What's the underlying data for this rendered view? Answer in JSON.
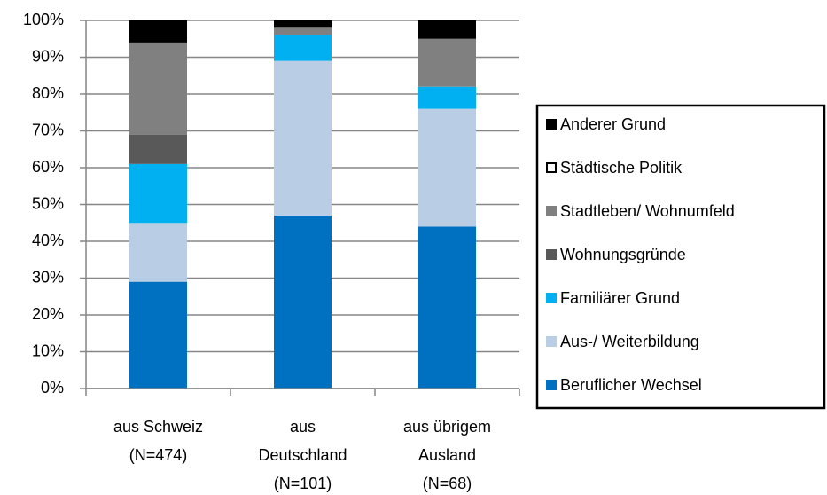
{
  "chart_data": {
    "type": "bar",
    "stacked": true,
    "categories": [
      "aus Schweiz\n(N=474)",
      "aus\nDeutschland\n(N=101)",
      "aus übrigem\nAusland\n(N=68)"
    ],
    "series": [
      {
        "name": "Beruflicher Wechsel",
        "color": "#0070c0",
        "values": [
          29,
          47,
          44
        ]
      },
      {
        "name": "Aus-/ Weiterbildung",
        "color": "#b9cde5",
        "values": [
          16,
          42,
          32
        ]
      },
      {
        "name": "Familiärer Grund",
        "color": "#00b0f0",
        "values": [
          16,
          7,
          6
        ]
      },
      {
        "name": "Wohnungsgründe",
        "color": "#595959",
        "values": [
          8,
          0,
          0
        ]
      },
      {
        "name": "Stadtleben/ Wohnumfeld",
        "color": "#808080",
        "values": [
          25,
          2,
          13
        ]
      },
      {
        "name": "Städtische Politik",
        "color": "#ffffff",
        "values": [
          0,
          0,
          0
        ]
      },
      {
        "name": "Anderer Grund",
        "color": "#000000",
        "values": [
          6,
          2,
          5
        ]
      }
    ],
    "ylim": [
      0,
      100
    ],
    "yticks": [
      {
        "value": 0,
        "label": "0%"
      },
      {
        "value": 10,
        "label": "10%"
      },
      {
        "value": 20,
        "label": "20%"
      },
      {
        "value": 30,
        "label": "30%"
      },
      {
        "value": 40,
        "label": "40%"
      },
      {
        "value": 50,
        "label": "50%"
      },
      {
        "value": 60,
        "label": "60%"
      },
      {
        "value": 70,
        "label": "70%"
      },
      {
        "value": 80,
        "label": "80%"
      },
      {
        "value": 90,
        "label": "90%"
      },
      {
        "value": 100,
        "label": "100%"
      }
    ],
    "grid": true,
    "legend": "right"
  }
}
